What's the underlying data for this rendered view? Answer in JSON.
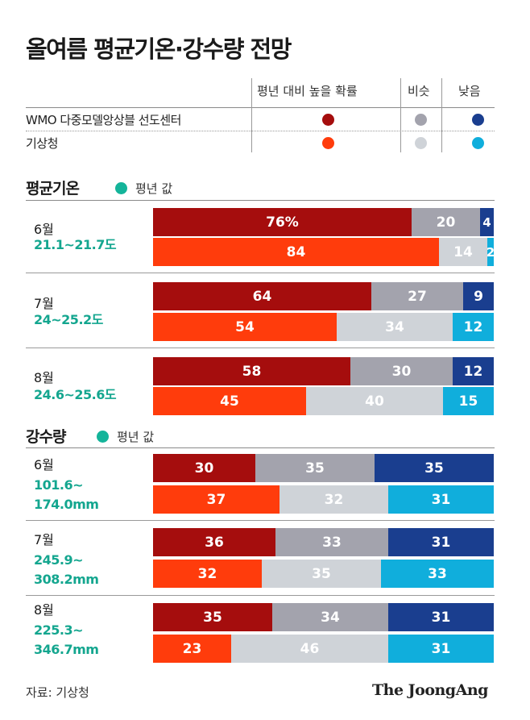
{
  "title": "올여름 평균기온·강수량 전망",
  "legend": {
    "headers": [
      "평년 대비 높을 확률",
      "비슷",
      "낮음"
    ],
    "rows": [
      {
        "source": "WMO 다중모델앙상블 선도센터",
        "colors": [
          "#a50d0d",
          "#a3a3ad",
          "#1a3e8f"
        ]
      },
      {
        "source": "기상청",
        "colors": [
          "#ff3c0c",
          "#cfd3d8",
          "#10aedc"
        ]
      }
    ]
  },
  "colors": {
    "wmo": [
      "#a50d0d",
      "#a3a3ad",
      "#1a3e8f"
    ],
    "kma": [
      "#ff3c0c",
      "#cfd3d8",
      "#10aedc"
    ],
    "range_text": "#14a68f"
  },
  "chart_data": [
    {
      "type": "bar",
      "title": "평균기온",
      "note": "평년 값",
      "series": [
        {
          "name": "WMO 다중모델앙상블 선도센터"
        },
        {
          "name": "기상청"
        }
      ],
      "groups": [
        {
          "month": "6월",
          "range": "21.1~21.7도",
          "wmo": [
            76,
            20,
            4
          ],
          "wmo_labels": [
            "76%",
            "20",
            "4"
          ],
          "kma": [
            84,
            14,
            2
          ],
          "kma_labels": [
            "84",
            "14",
            "2"
          ]
        },
        {
          "month": "7월",
          "range": "24~25.2도",
          "wmo": [
            64,
            27,
            9
          ],
          "wmo_labels": [
            "64",
            "27",
            "9"
          ],
          "kma": [
            54,
            34,
            12
          ],
          "kma_labels": [
            "54",
            "34",
            "12"
          ]
        },
        {
          "month": "8월",
          "range": "24.6~25.6도",
          "wmo": [
            58,
            30,
            12
          ],
          "wmo_labels": [
            "58",
            "30",
            "12"
          ],
          "kma": [
            45,
            40,
            15
          ],
          "kma_labels": [
            "45",
            "40",
            "15"
          ]
        }
      ]
    },
    {
      "type": "bar",
      "title": "강수량",
      "note": "평년 값",
      "series": [
        {
          "name": "WMO 다중모델앙상블 선도센터"
        },
        {
          "name": "기상청"
        }
      ],
      "groups": [
        {
          "month": "6월",
          "range": "101.6~\n174.0mm",
          "wmo": [
            30,
            35,
            35
          ],
          "wmo_labels": [
            "30",
            "35",
            "35"
          ],
          "kma": [
            37,
            32,
            31
          ],
          "kma_labels": [
            "37",
            "32",
            "31"
          ]
        },
        {
          "month": "7월",
          "range": "245.9~\n308.2mm",
          "wmo": [
            36,
            33,
            31
          ],
          "wmo_labels": [
            "36",
            "33",
            "31"
          ],
          "kma": [
            32,
            35,
            33
          ],
          "kma_labels": [
            "32",
            "35",
            "33"
          ]
        },
        {
          "month": "8월",
          "range": "225.3~\n346.7mm",
          "wmo": [
            35,
            34,
            31
          ],
          "wmo_labels": [
            "35",
            "34",
            "31"
          ],
          "kma": [
            23,
            46,
            31
          ],
          "kma_labels": [
            "23",
            "46",
            "31"
          ]
        }
      ]
    }
  ],
  "footer": {
    "source": "자료: 기상청",
    "brand": "The JoongAng"
  }
}
